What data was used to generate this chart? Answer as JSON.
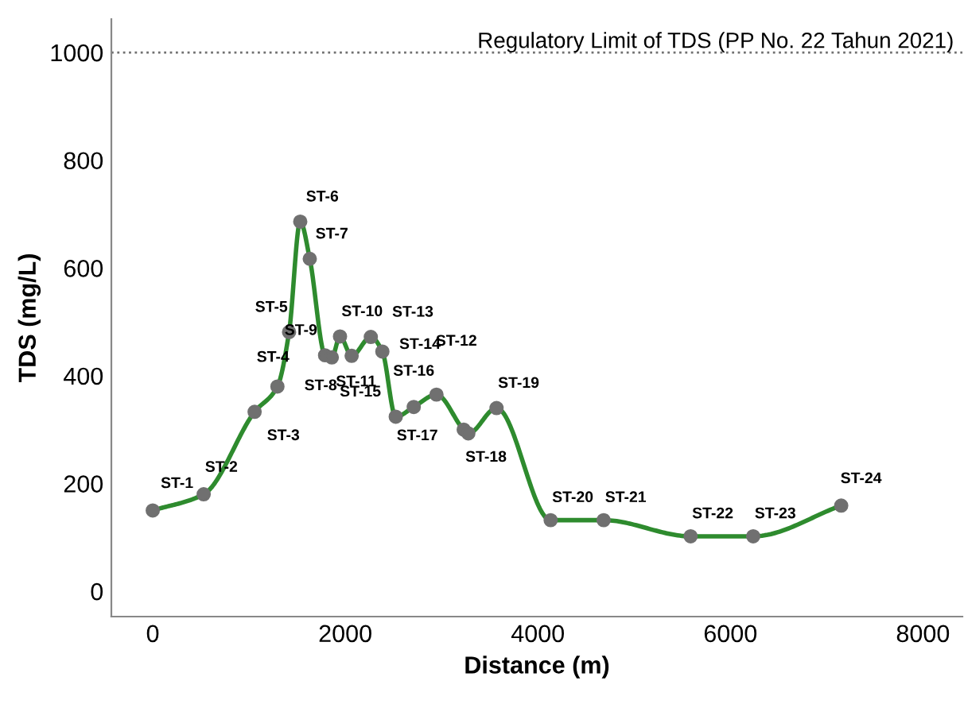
{
  "chart_data": {
    "type": "line",
    "xlabel": "Distance (m)",
    "ylabel": "TDS (mg/L)",
    "series": [
      {
        "color": "#2e8b2e",
        "colors": [
          "#707070",
          "#707070",
          "#707070",
          "#707070",
          "#707070",
          "#707070",
          "#707070",
          "#707070",
          "#707070",
          "#707070",
          "#707070",
          "#707070",
          "#707070",
          "#707070",
          "#707070",
          "#707070",
          "#707070",
          "#707070",
          "#707070",
          "#707070",
          "#707070",
          "#707070",
          "#707070",
          "#707070"
        ],
        "x": [
          0,
          529,
          1058,
          1295,
          1416,
          1532,
          1631,
          1790,
          1860,
          1945,
          2066,
          2265,
          2385,
          2524,
          2711,
          2947,
          3230,
          3278,
          3571,
          4133,
          4683,
          5587,
          6237,
          7151
        ],
        "values": [
          150,
          180,
          333,
          380,
          481,
          686,
          617,
          438,
          434,
          473,
          437,
          472,
          445,
          324,
          342,
          365,
          300,
          293,
          340,
          132,
          132,
          102,
          102,
          159
        ],
        "value_labels": [
          "ST-1",
          "ST-2",
          "ST-3",
          "ST-4",
          "ST-5",
          "ST-6",
          "ST-7",
          "ST-8",
          "ST-9",
          "ST-10",
          "ST-11",
          "ST-13",
          "ST-14",
          "ST-15",
          "ST-16",
          "ST-12",
          "ST-17",
          "ST-18",
          "ST-19",
          "ST-20",
          "ST-21",
          "ST-22",
          "ST-23",
          "ST-24"
        ]
      }
    ],
    "xlim": [
      -430,
      8410
    ],
    "ylim": [
      -47,
      1062
    ],
    "xticks": [
      0,
      2000,
      4000,
      6000,
      8000
    ],
    "yticks": [
      0,
      200,
      400,
      600,
      800,
      1000
    ],
    "marker": "circle",
    "line_style": "solid",
    "grid": false,
    "legend": false,
    "ref_lines": [
      {
        "axis": "y",
        "value": 1000,
        "label": "Regulatory Limit of TDS (PP No. 22 Tahun 2021)",
        "color": "#707070",
        "line_style": "dotted"
      }
    ]
  }
}
